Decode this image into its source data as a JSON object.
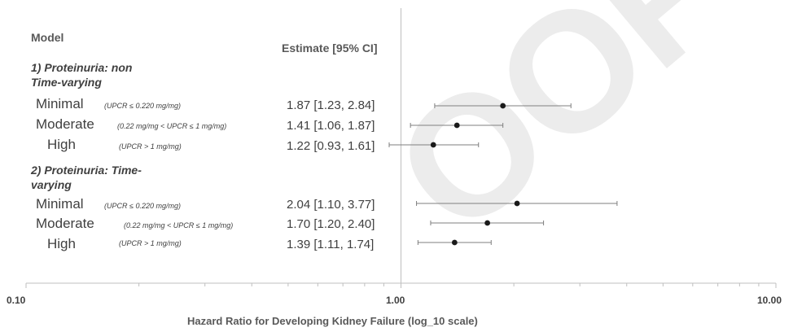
{
  "watermark": "OOF",
  "headers": {
    "model": "Model",
    "estimate": "Estimate [95% CI]"
  },
  "groups": [
    {
      "title_line1": "1) Proteinuria: non",
      "title_line2": "Time-varying"
    },
    {
      "title_line1": "2) Proteinuria: Time-",
      "title_line2": "varying"
    }
  ],
  "rows": [
    {
      "group": 0,
      "level": "Minimal",
      "definition": "(UPCR ≤ 0.220 mg/mg)",
      "estimate_text": "1.87 [1.23, 2.84]"
    },
    {
      "group": 0,
      "level": "Moderate",
      "definition": "(0.22 mg/mg < UPCR ≤ 1 mg/mg)",
      "estimate_text": "1.41 [1.06, 1.87]"
    },
    {
      "group": 0,
      "level": "High",
      "definition": "(UPCR > 1 mg/mg)",
      "estimate_text": "1.22 [0.93, 1.61]"
    },
    {
      "group": 1,
      "level": "Minimal",
      "definition": "(UPCR ≤ 0.220 mg/mg)",
      "estimate_text": "2.04 [1.10, 3.77]"
    },
    {
      "group": 1,
      "level": "Moderate",
      "definition": "(0.22 mg/mg < UPCR ≤ 1 mg/mg)",
      "estimate_text": "1.70 [1.20, 2.40]"
    },
    {
      "group": 1,
      "level": "High",
      "definition": "(UPCR > 1 mg/mg)",
      "estimate_text": "1.39 [1.11, 1.74]"
    }
  ],
  "colors": {
    "point": "#1a1a1a",
    "whisker": "#7f7f7f",
    "axis": "#bfbfbf",
    "text": "#404040"
  },
  "chart_data": {
    "type": "scatter",
    "subtype": "forest-plot",
    "title": "",
    "xlabel": "Hazard Ratio for Developing Kidney Failure (log_10 scale)",
    "ylabel": "",
    "x_scale": "log10",
    "xlim": [
      0.1,
      10
    ],
    "x_ticks": [
      0.1,
      1,
      10
    ],
    "x_tick_labels": [
      "0.10",
      "1.00",
      "10.00"
    ],
    "reference_line": 1,
    "grid": false,
    "series": [
      {
        "name": "1) Proteinuria: non Time-varying",
        "categories": [
          "Minimal",
          "Moderate",
          "High"
        ],
        "estimate": [
          1.87,
          1.41,
          1.22
        ],
        "ci_lower": [
          1.23,
          1.06,
          0.93
        ],
        "ci_upper": [
          2.84,
          1.87,
          1.61
        ]
      },
      {
        "name": "2) Proteinuria: Time-varying",
        "categories": [
          "Minimal",
          "Moderate",
          "High"
        ],
        "estimate": [
          2.04,
          1.7,
          1.39
        ],
        "ci_lower": [
          1.1,
          1.2,
          1.11
        ],
        "ci_upper": [
          3.77,
          2.4,
          1.74
        ]
      }
    ]
  }
}
